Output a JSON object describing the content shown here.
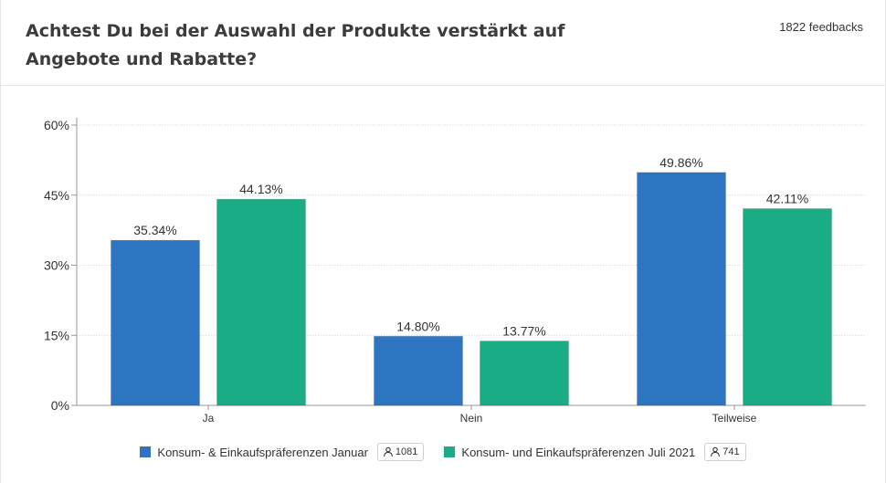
{
  "header": {
    "title": "Achtest Du bei der Auswahl der Produkte verstärkt auf Angebote und Rabatte?",
    "feedbacks": "1822 feedbacks"
  },
  "legend": [
    {
      "label": "Konsum- & Einkaufspräferenzen Januar",
      "count": "1081",
      "color": "#2e75c1",
      "icon": "person-icon"
    },
    {
      "label": "Konsum- und Einkaufspräferenzen Juli 2021",
      "count": "741",
      "color": "#1aad85",
      "icon": "person-icon"
    }
  ],
  "chart_data": {
    "type": "bar",
    "categories": [
      "Ja",
      "Nein",
      "Teilweise"
    ],
    "series": [
      {
        "name": "Konsum- & Einkaufspräferenzen Januar",
        "values": [
          35.34,
          14.8,
          49.86
        ],
        "color": "#2e75c1"
      },
      {
        "name": "Konsum- und Einkaufspräferenzen Juli 2021",
        "values": [
          44.13,
          13.77,
          42.11
        ],
        "color": "#1aad85"
      }
    ],
    "value_labels": [
      [
        "35.34%",
        "14.80%",
        "49.86%"
      ],
      [
        "44.13%",
        "13.77%",
        "42.11%"
      ]
    ],
    "yticks": [
      0,
      15,
      30,
      45,
      60
    ],
    "ytick_labels": [
      "0%",
      "15%",
      "30%",
      "45%",
      "60%"
    ],
    "ylim": [
      0,
      60
    ],
    "grid": true,
    "legend_position": "bottom"
  }
}
